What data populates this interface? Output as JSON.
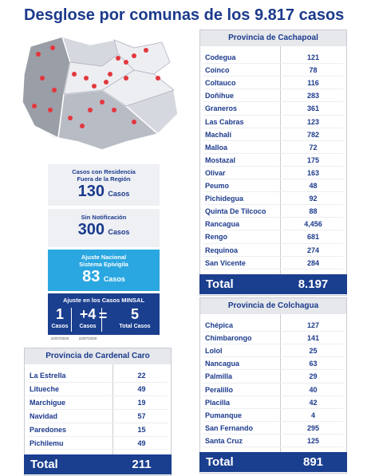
{
  "title": "Desglose por comunas de los 9.817 casos",
  "summary": {
    "residencia": {
      "label": "Casos con Residencia Fuera de la Región",
      "value": "130",
      "unit": "Casos"
    },
    "sin_notificacion": {
      "label": "Sin Notificación",
      "value": "300",
      "unit": "Casos"
    },
    "ajuste_nacional": {
      "label": "Ajuste Nacional Sistema Epivigila",
      "value": "83",
      "unit": "Casos"
    },
    "ajuste_minsal": {
      "label": "Ajuste en los Casos MINSAL",
      "operator": "=",
      "items": [
        {
          "value": "1",
          "unit": "Casos",
          "date": "22/07/2020"
        },
        {
          "value": "+4",
          "unit": "Casos",
          "date": "22/07/2020"
        },
        {
          "value": "5",
          "unit": "Total Casos"
        }
      ]
    }
  },
  "provinces": [
    {
      "name": "Provincia de Cachapoal",
      "total_label": "Total",
      "total": "8.197",
      "rows": [
        [
          "Codegua",
          "121"
        ],
        [
          "Coinco",
          "78"
        ],
        [
          "Coltauco",
          "116"
        ],
        [
          "Doñihue",
          "283"
        ],
        [
          "Graneros",
          "361"
        ],
        [
          "Las Cabras",
          "123"
        ],
        [
          "Machalí",
          "782"
        ],
        [
          "Malloa",
          "72"
        ],
        [
          "Mostazal",
          "175"
        ],
        [
          "Olivar",
          "163"
        ],
        [
          "Peumo",
          "48"
        ],
        [
          "Pichidegua",
          "92"
        ],
        [
          "Quinta De Tilcoco",
          "88"
        ],
        [
          "Rancagua",
          "4,456"
        ],
        [
          "Rengo",
          "681"
        ],
        [
          "Requinoa",
          "274"
        ],
        [
          "San Vicente",
          "284"
        ]
      ]
    },
    {
      "name": "Provincia de Colchagua",
      "total_label": "Total",
      "total": "891",
      "rows": [
        [
          "Chépica",
          "127"
        ],
        [
          "Chimbarongo",
          "141"
        ],
        [
          "Lolol",
          "25"
        ],
        [
          "Nancagua",
          "63"
        ],
        [
          "Palmilla",
          "29"
        ],
        [
          "Peralillo",
          "40"
        ],
        [
          "Placilla",
          "42"
        ],
        [
          "Pumanque",
          "4"
        ],
        [
          "San Fernando",
          "295"
        ],
        [
          "Santa Cruz",
          "125"
        ]
      ]
    },
    {
      "name": "Provincia de Cardenal Caro",
      "total_label": "Total",
      "total": "211",
      "rows": [
        [
          "La Estrella",
          "22"
        ],
        [
          "Litueche",
          "49"
        ],
        [
          "Marchigue",
          "19"
        ],
        [
          "Navidad",
          "57"
        ],
        [
          "Paredones",
          "15"
        ],
        [
          "Pichilemu",
          "49"
        ]
      ]
    }
  ]
}
